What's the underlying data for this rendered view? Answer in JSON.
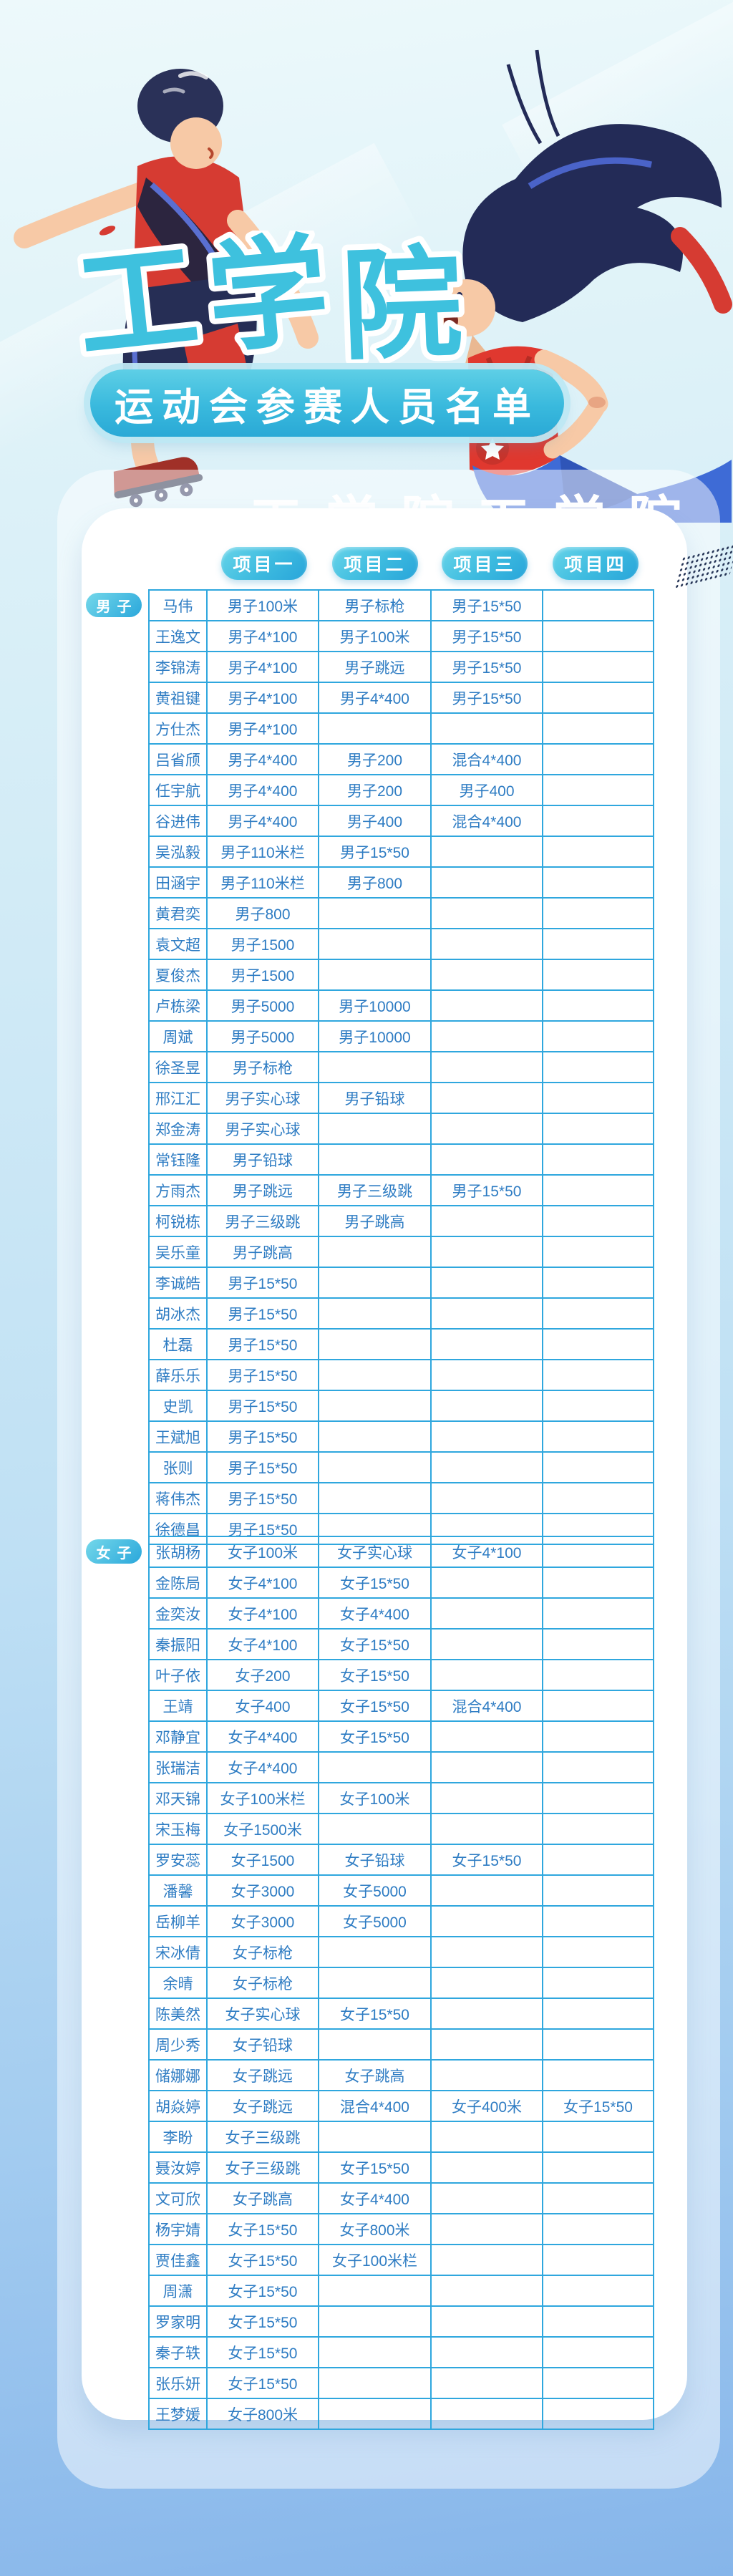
{
  "page": {
    "title_chars": [
      "工",
      "学",
      "院"
    ],
    "subtitle": "运动会参赛人员名单",
    "band_decor_text": "工学院工学院",
    "column_headers": [
      "项目一",
      "项目二",
      "项目三",
      "项目四"
    ]
  },
  "colors": {
    "accent_cyan": "#3ec1de",
    "pill_gradient_start": "#66d4e9",
    "pill_gradient_end": "#29a5da",
    "table_border": "#2fa7de",
    "cell_text": "#2e7cc3",
    "illustration_navy": "#232b57",
    "illustration_red": "#d63b32",
    "background_top": "#edf9fb",
    "background_bottom": "#86b5ea"
  },
  "icons": [
    {
      "name": "halftone-stripe-decor",
      "description": "navy dotted diagonal stripe at right edge of card"
    }
  ],
  "sections": [
    {
      "label": "男子",
      "rows": [
        {
          "name": "马伟",
          "events": [
            "男子100米",
            "男子标枪",
            "男子15*50",
            ""
          ]
        },
        {
          "name": "王逸文",
          "events": [
            "男子4*100",
            "男子100米",
            "男子15*50",
            ""
          ]
        },
        {
          "name": "李锦涛",
          "events": [
            "男子4*100",
            "男子跳远",
            "男子15*50",
            ""
          ]
        },
        {
          "name": "黄祖键",
          "events": [
            "男子4*100",
            "男子4*400",
            "男子15*50",
            ""
          ]
        },
        {
          "name": "方仕杰",
          "events": [
            "男子4*100",
            "",
            "",
            ""
          ]
        },
        {
          "name": "吕省颀",
          "events": [
            "男子4*400",
            "男子200",
            "混合4*400",
            ""
          ]
        },
        {
          "name": "任宇航",
          "events": [
            "男子4*400",
            "男子200",
            "男子400",
            ""
          ]
        },
        {
          "name": "谷进伟",
          "events": [
            "男子4*400",
            "男子400",
            "混合4*400",
            ""
          ]
        },
        {
          "name": "吴泓毅",
          "events": [
            "男子110米栏",
            "男子15*50",
            "",
            ""
          ]
        },
        {
          "name": "田涵宇",
          "events": [
            "男子110米栏",
            "男子800",
            "",
            ""
          ]
        },
        {
          "name": "黄君奕",
          "events": [
            "男子800",
            "",
            "",
            ""
          ]
        },
        {
          "name": "袁文超",
          "events": [
            "男子1500",
            "",
            "",
            ""
          ]
        },
        {
          "name": "夏俊杰",
          "events": [
            "男子1500",
            "",
            "",
            ""
          ]
        },
        {
          "name": "卢栋梁",
          "events": [
            "男子5000",
            "男子10000",
            "",
            ""
          ]
        },
        {
          "name": "周斌",
          "events": [
            "男子5000",
            "男子10000",
            "",
            ""
          ]
        },
        {
          "name": "徐圣昱",
          "events": [
            "男子标枪",
            "",
            "",
            ""
          ]
        },
        {
          "name": "邢江汇",
          "events": [
            "男子实心球",
            "男子铅球",
            "",
            ""
          ]
        },
        {
          "name": "郑金涛",
          "events": [
            "男子实心球",
            "",
            "",
            ""
          ]
        },
        {
          "name": "常钰隆",
          "events": [
            "男子铅球",
            "",
            "",
            ""
          ]
        },
        {
          "name": "方雨杰",
          "events": [
            "男子跳远",
            "男子三级跳",
            "男子15*50",
            ""
          ]
        },
        {
          "name": "柯锐栋",
          "events": [
            "男子三级跳",
            "男子跳高",
            "",
            ""
          ]
        },
        {
          "name": "吴乐童",
          "events": [
            "男子跳高",
            "",
            "",
            ""
          ]
        },
        {
          "name": "李诚皓",
          "events": [
            "男子15*50",
            "",
            "",
            ""
          ]
        },
        {
          "name": "胡冰杰",
          "events": [
            "男子15*50",
            "",
            "",
            ""
          ]
        },
        {
          "name": "杜磊",
          "events": [
            "男子15*50",
            "",
            "",
            ""
          ]
        },
        {
          "name": "薛乐乐",
          "events": [
            "男子15*50",
            "",
            "",
            ""
          ]
        },
        {
          "name": "史凯",
          "events": [
            "男子15*50",
            "",
            "",
            ""
          ]
        },
        {
          "name": "王斌旭",
          "events": [
            "男子15*50",
            "",
            "",
            ""
          ]
        },
        {
          "name": "张则",
          "events": [
            "男子15*50",
            "",
            "",
            ""
          ]
        },
        {
          "name": "蒋伟杰",
          "events": [
            "男子15*50",
            "",
            "",
            ""
          ]
        },
        {
          "name": "徐德昌",
          "events": [
            "男子15*50",
            "",
            "",
            ""
          ]
        }
      ]
    },
    {
      "label": "女子",
      "rows": [
        {
          "name": "张胡杨",
          "events": [
            "女子100米",
            "女子实心球",
            "女子4*100",
            ""
          ]
        },
        {
          "name": "金陈局",
          "events": [
            "女子4*100",
            "女子15*50",
            "",
            ""
          ]
        },
        {
          "name": "金奕汝",
          "events": [
            "女子4*100",
            "女子4*400",
            "",
            ""
          ]
        },
        {
          "name": "秦振阳",
          "events": [
            "女子4*100",
            "女子15*50",
            "",
            ""
          ]
        },
        {
          "name": "叶子依",
          "events": [
            "女子200",
            "女子15*50",
            "",
            ""
          ]
        },
        {
          "name": "王靖",
          "events": [
            "女子400",
            "女子15*50",
            "混合4*400",
            ""
          ]
        },
        {
          "name": "邓静宜",
          "events": [
            "女子4*400",
            "女子15*50",
            "",
            ""
          ]
        },
        {
          "name": "张瑞洁",
          "events": [
            "女子4*400",
            "",
            "",
            ""
          ]
        },
        {
          "name": "邓天锦",
          "events": [
            "女子100米栏",
            "女子100米",
            "",
            ""
          ]
        },
        {
          "name": "宋玉梅",
          "events": [
            "女子1500米",
            "",
            "",
            ""
          ]
        },
        {
          "name": "罗安蕊",
          "events": [
            "女子1500",
            "女子铅球",
            "女子15*50",
            ""
          ]
        },
        {
          "name": "潘馨",
          "events": [
            "女子3000",
            "女子5000",
            "",
            ""
          ]
        },
        {
          "name": "岳柳羊",
          "events": [
            "女子3000",
            "女子5000",
            "",
            ""
          ]
        },
        {
          "name": "宋冰倩",
          "events": [
            "女子标枪",
            "",
            "",
            ""
          ]
        },
        {
          "name": "余晴",
          "events": [
            "女子标枪",
            "",
            "",
            ""
          ]
        },
        {
          "name": "陈美然",
          "events": [
            "女子实心球",
            "女子15*50",
            "",
            ""
          ]
        },
        {
          "name": "周少秀",
          "events": [
            "女子铅球",
            "",
            "",
            ""
          ]
        },
        {
          "name": "储娜娜",
          "events": [
            "女子跳远",
            "女子跳高",
            "",
            ""
          ]
        },
        {
          "name": "胡焱婷",
          "events": [
            "女子跳远",
            "混合4*400",
            "女子400米",
            "女子15*50"
          ]
        },
        {
          "name": "李盼",
          "events": [
            "女子三级跳",
            "",
            "",
            ""
          ]
        },
        {
          "name": "聂汝婷",
          "events": [
            "女子三级跳",
            "女子15*50",
            "",
            ""
          ]
        },
        {
          "name": "文可欣",
          "events": [
            "女子跳高",
            "女子4*400",
            "",
            ""
          ]
        },
        {
          "name": "杨宇婧",
          "events": [
            "女子15*50",
            "女子800米",
            "",
            ""
          ]
        },
        {
          "name": "贾佳鑫",
          "events": [
            "女子15*50",
            "女子100米栏",
            "",
            ""
          ]
        },
        {
          "name": "周潇",
          "events": [
            "女子15*50",
            "",
            "",
            ""
          ]
        },
        {
          "name": "罗家明",
          "events": [
            "女子15*50",
            "",
            "",
            ""
          ]
        },
        {
          "name": "秦子轶",
          "events": [
            "女子15*50",
            "",
            "",
            ""
          ]
        },
        {
          "name": "张乐妍",
          "events": [
            "女子15*50",
            "",
            "",
            ""
          ]
        },
        {
          "name": "王梦媛",
          "events": [
            "女子800米",
            "",
            "",
            ""
          ]
        }
      ]
    }
  ]
}
